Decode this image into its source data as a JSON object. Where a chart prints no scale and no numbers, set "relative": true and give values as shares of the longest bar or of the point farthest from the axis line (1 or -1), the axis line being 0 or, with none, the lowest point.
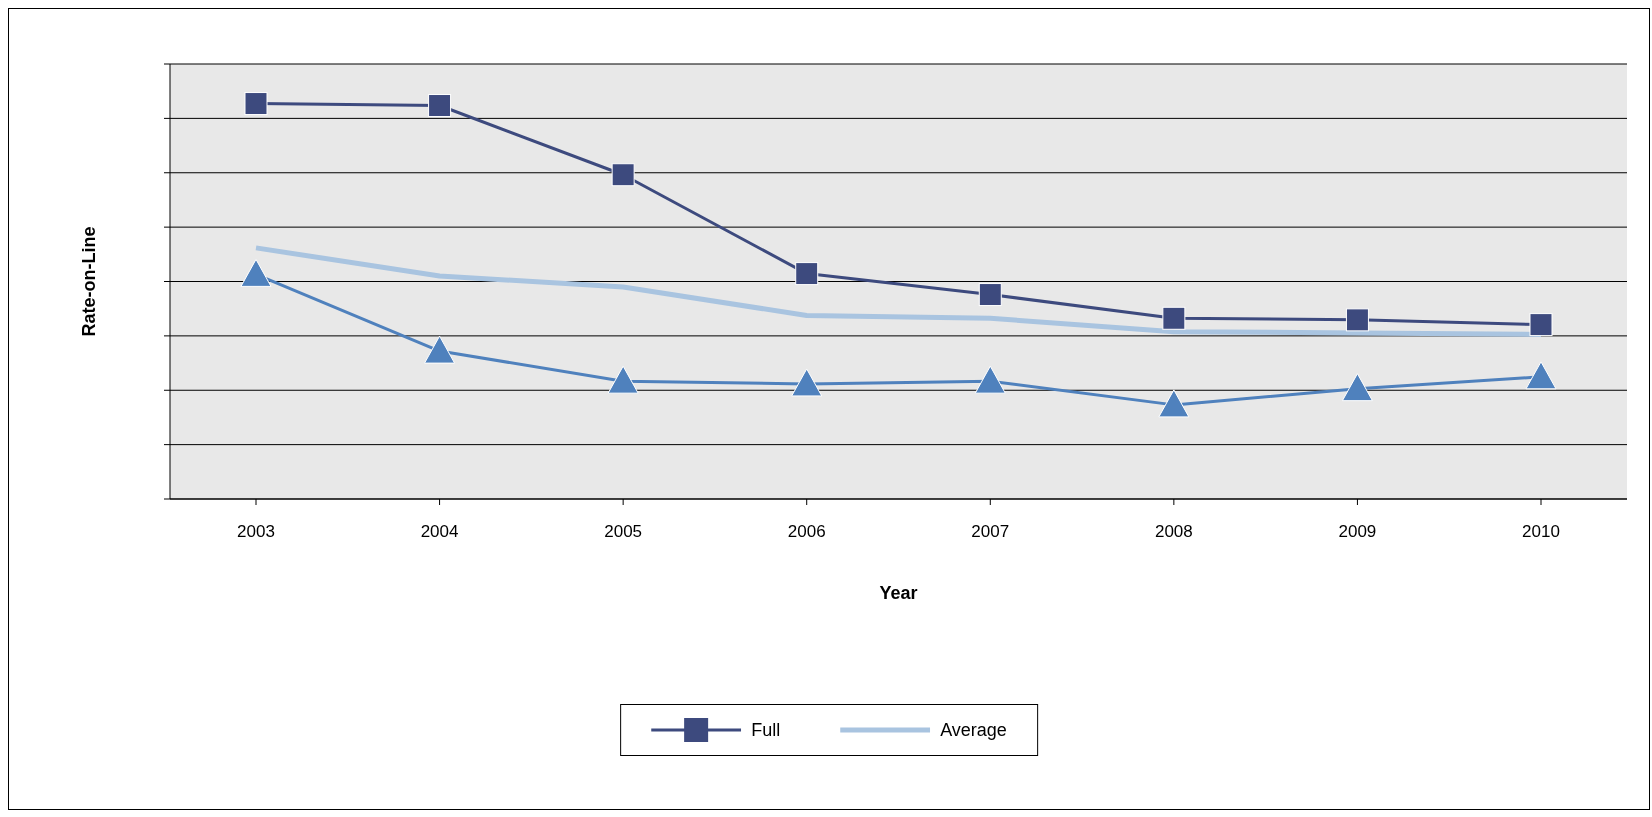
{
  "chart_data": {
    "type": "line",
    "xlabel": "Year",
    "ylabel": "Rate-on-Line",
    "relative": true,
    "grid": "y",
    "legend": "bottom",
    "categories": [
      "2003",
      "2004",
      "2005",
      "2006",
      "2007",
      "2008",
      "2009",
      "2010"
    ],
    "series": [
      {
        "name": "Full",
        "color": "#3d4a7e",
        "marker": "square",
        "values": [
          1,
          0.995,
          0.82,
          0.57,
          0.517,
          0.457,
          0.453,
          0.441
        ]
      },
      {
        "color": "#4f81bd",
        "marker": "triangle",
        "values": [
          0.568,
          0.374,
          0.298,
          0.291,
          0.298,
          0.238,
          0.279,
          0.309
        ]
      },
      {
        "name": "Average",
        "color": "#a9c4e0",
        "marker": "none",
        "values": [
          0.635,
          0.564,
          0.536,
          0.464,
          0.457,
          0.423,
          0.42,
          0.416
        ]
      }
    ]
  }
}
